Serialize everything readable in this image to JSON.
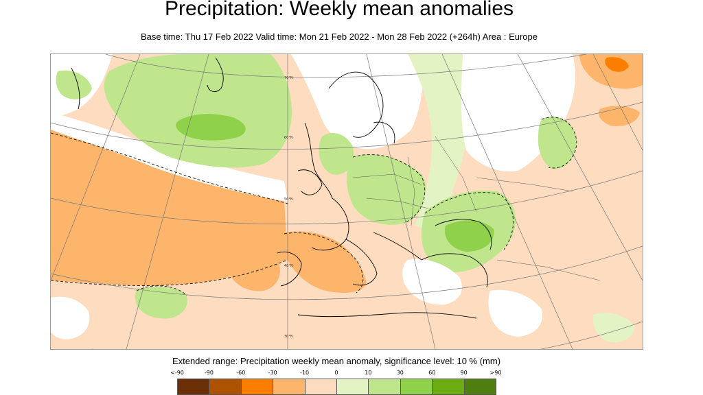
{
  "title": "Precipitation: Weekly mean anomalies",
  "subtitle": "Base time: Thu 17 Feb 2022 Valid time: Mon 21 Feb 2022 - Mon 28 Feb 2022 (+264h) Area : Europe",
  "map": {
    "region": "Europe",
    "lat_labels": [
      "70°N",
      "60°N",
      "50°N",
      "40°N",
      "30°N"
    ]
  },
  "legend": {
    "caption": "Extended range: Precipitation weekly mean anomaly, significance level: 10 % (mm)",
    "ticks": [
      "<-90",
      "-90",
      "-60",
      "-30",
      "-10",
      "0",
      "10",
      "30",
      "60",
      "90",
      ">90"
    ],
    "colors": [
      "#6b2f05",
      "#ad5200",
      "#fb7e00",
      "#fdb46b",
      "#fddcc0",
      "#e3f3c4",
      "#bfe68c",
      "#8fd14b",
      "#6aac12",
      "#4d7e0f"
    ]
  }
}
